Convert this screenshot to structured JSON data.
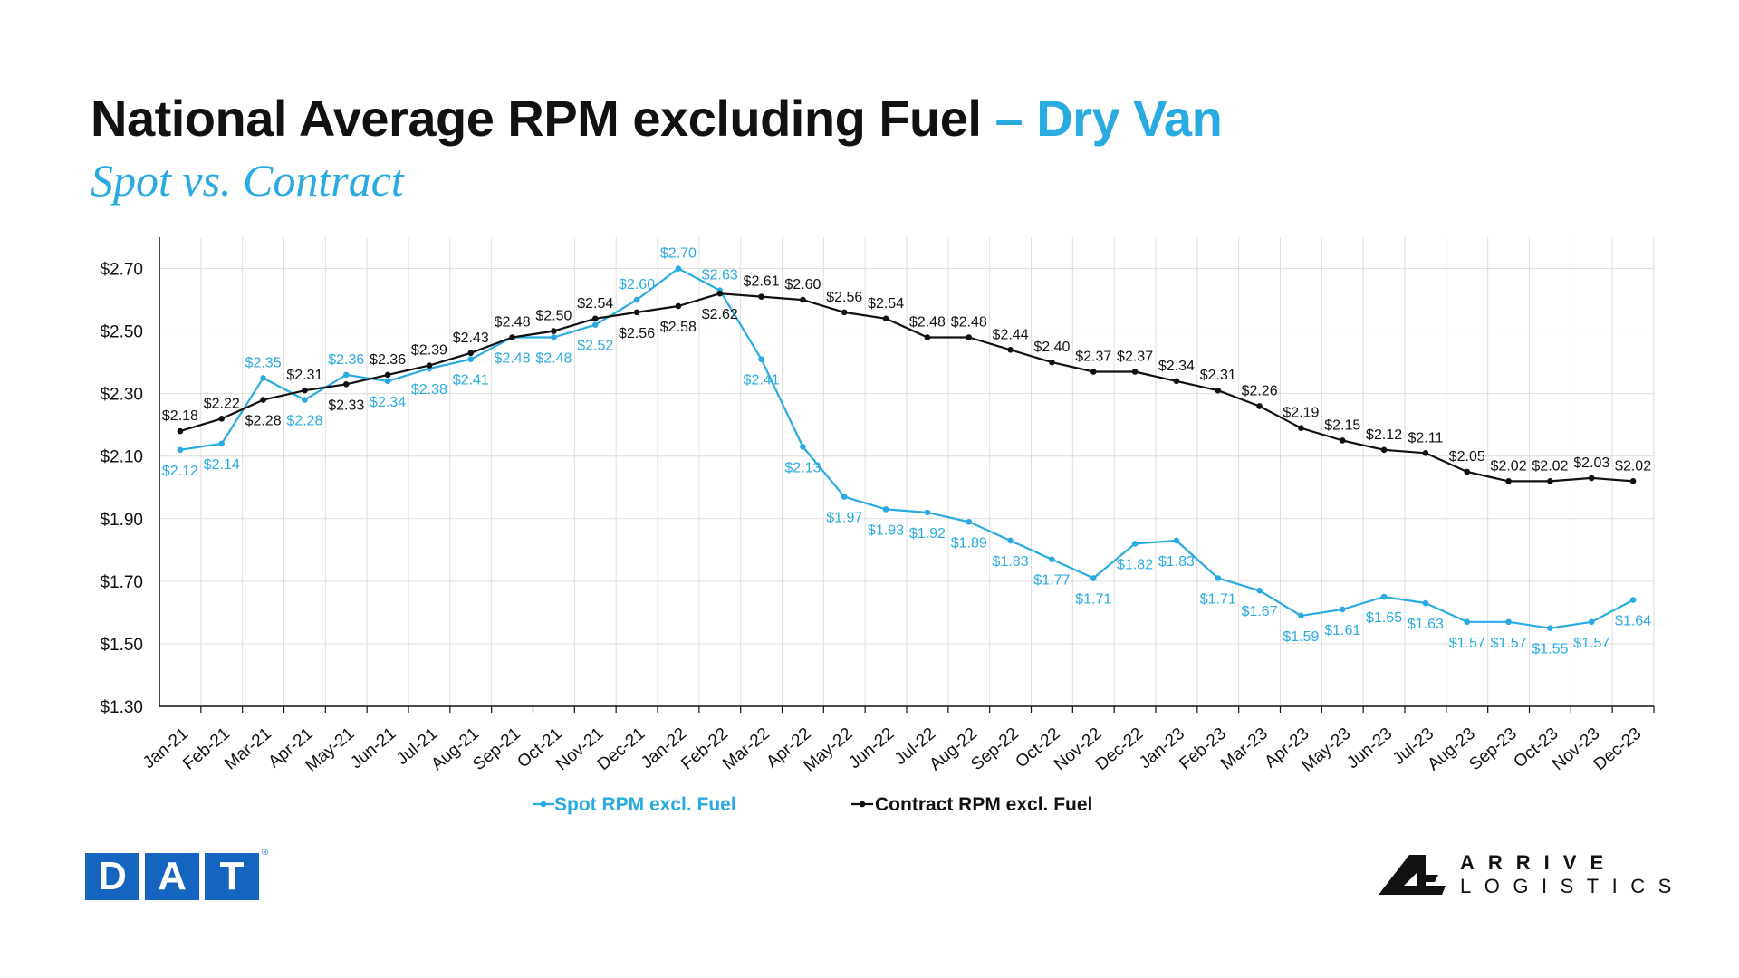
{
  "header": {
    "title_main": "National Average RPM excluding Fuel",
    "title_accent": "– Dry Van",
    "subtitle": "Spot vs. Contract"
  },
  "logos": {
    "dat_letters": [
      "D",
      "A",
      "T"
    ],
    "dat_mark": "®",
    "arrive_line1": "ARRIVE",
    "arrive_line2": "LOGISTICS"
  },
  "colors": {
    "spot": "#29abe2",
    "contract": "#111111",
    "grid": "#dedede",
    "dat_blue": "#1565c0"
  },
  "chart_data": {
    "type": "line",
    "title": "National Average RPM excluding Fuel – Dry Van",
    "subtitle": "Spot vs. Contract",
    "categories": [
      "Jan-21",
      "Feb-21",
      "Mar-21",
      "Apr-21",
      "May-21",
      "Jun-21",
      "Jul-21",
      "Aug-21",
      "Sep-21",
      "Oct-21",
      "Nov-21",
      "Dec-21",
      "Jan-22",
      "Feb-22",
      "Mar-22",
      "Apr-22",
      "May-22",
      "Jun-22",
      "Jul-22",
      "Aug-22",
      "Sep-22",
      "Oct-22",
      "Nov-22",
      "Dec-22",
      "Jan-23",
      "Feb-23",
      "Mar-23",
      "Apr-23",
      "May-23",
      "Jun-23",
      "Jul-23",
      "Aug-23",
      "Sep-23",
      "Oct-23",
      "Nov-23",
      "Dec-23"
    ],
    "ylim": [
      1.3,
      2.8
    ],
    "yticks": [
      1.3,
      1.5,
      1.7,
      1.9,
      2.1,
      2.3,
      2.5,
      2.7
    ],
    "ytick_labels": [
      "$1.30",
      "$1.50",
      "$1.70",
      "$1.90",
      "$2.10",
      "$2.30",
      "$2.50",
      "$2.70"
    ],
    "grid": true,
    "legend_position": "bottom",
    "series": [
      {
        "name": "Spot RPM excl. Fuel",
        "color": "#29abe2",
        "values": [
          2.12,
          2.14,
          2.35,
          2.28,
          2.36,
          2.34,
          2.38,
          2.41,
          2.48,
          2.48,
          2.52,
          2.6,
          2.7,
          2.63,
          2.41,
          2.13,
          1.97,
          1.93,
          1.92,
          1.89,
          1.83,
          1.77,
          1.71,
          1.82,
          1.83,
          1.71,
          1.67,
          1.59,
          1.61,
          1.65,
          1.63,
          1.57,
          1.57,
          1.55,
          1.57,
          1.64
        ],
        "labels": [
          "$2.12",
          "$2.14",
          "$2.35",
          "$2.28",
          "$2.36",
          "$2.34",
          "$2.38",
          "$2.41",
          "$2.48",
          "$2.48",
          "$2.52",
          "$2.60",
          "$2.70",
          "$2.63",
          "$2.41",
          "$2.13",
          "$1.97",
          "$1.93",
          "$1.92",
          "$1.89",
          "$1.83",
          "$1.77",
          "$1.71",
          "$1.82",
          "$1.83",
          "$1.71",
          "$1.67",
          "$1.59",
          "$1.61",
          "$1.65",
          "$1.63",
          "$1.57",
          "$1.57",
          "$1.55",
          "$1.57",
          "$1.64"
        ],
        "label_side": [
          "b",
          "b",
          "a",
          "b",
          "a",
          "b",
          "b",
          "b",
          "b",
          "b",
          "b",
          "a",
          "a",
          "a",
          "b",
          "b",
          "b",
          "b",
          "b",
          "b",
          "b",
          "b",
          "b",
          "b",
          "b",
          "b",
          "b",
          "b",
          "b",
          "b",
          "b",
          "b",
          "b",
          "b",
          "b",
          "b"
        ]
      },
      {
        "name": "Contract RPM excl. Fuel",
        "color": "#111111",
        "values": [
          2.18,
          2.22,
          2.28,
          2.31,
          2.33,
          2.36,
          2.39,
          2.43,
          2.48,
          2.5,
          2.54,
          2.56,
          2.58,
          2.62,
          2.61,
          2.6,
          2.56,
          2.54,
          2.48,
          2.48,
          2.44,
          2.4,
          2.37,
          2.37,
          2.34,
          2.31,
          2.26,
          2.19,
          2.15,
          2.12,
          2.11,
          2.05,
          2.02,
          2.02,
          2.03,
          2.02
        ],
        "labels": [
          "$2.18",
          "$2.22",
          "$2.28",
          "$2.31",
          "$2.33",
          "$2.36",
          "$2.39",
          "$2.43",
          "$2.48",
          "$2.50",
          "$2.54",
          "$2.56",
          "$2.58",
          "$2.62",
          "$2.61",
          "$2.60",
          "$2.56",
          "$2.54",
          "$2.48",
          "$2.48",
          "$2.44",
          "$2.40",
          "$2.37",
          "$2.37",
          "$2.34",
          "$2.31",
          "$2.26",
          "$2.19",
          "$2.15",
          "$2.12",
          "$2.11",
          "$2.05",
          "$2.02",
          "$2.02",
          "$2.03",
          "$2.02"
        ],
        "label_side": [
          "a",
          "a",
          "b",
          "a",
          "b",
          "a",
          "a",
          "a",
          "a",
          "a",
          "a",
          "b",
          "b",
          "b",
          "a",
          "a",
          "a",
          "a",
          "a",
          "a",
          "a",
          "a",
          "a",
          "a",
          "a",
          "a",
          "a",
          "a",
          "a",
          "a",
          "a",
          "a",
          "a",
          "a",
          "a",
          "a"
        ]
      }
    ]
  }
}
